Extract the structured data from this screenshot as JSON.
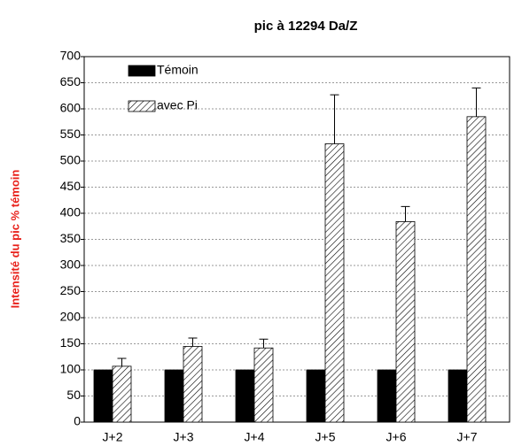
{
  "chart_data": {
    "type": "bar",
    "title": "pic à 12294 Da/Z",
    "y_label": "Intensité du pic % témoin",
    "categories": [
      "J+2",
      "J+3",
      "J+4",
      "J+5",
      "J+6",
      "J+7"
    ],
    "series": [
      {
        "name": "Témoin",
        "color": "#000000",
        "pattern": "solid",
        "values": [
          100,
          100,
          100,
          100,
          100,
          100
        ]
      },
      {
        "name": "avec Pi",
        "color": "#000000",
        "pattern": "hatch",
        "values": [
          107,
          145,
          142,
          533,
          384,
          585
        ],
        "errors": [
          15,
          16,
          17,
          94,
          29,
          55
        ]
      }
    ],
    "ylim": [
      0,
      700
    ],
    "yticks": [
      0,
      50,
      100,
      150,
      200,
      250,
      300,
      350,
      400,
      450,
      500,
      550,
      600,
      650,
      700
    ],
    "grid": true,
    "legend": "top-left",
    "y_label_color": "#e8201a"
  }
}
